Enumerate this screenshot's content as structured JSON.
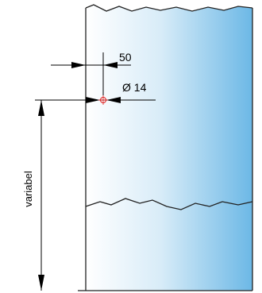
{
  "dimensions": {
    "offset_label": "50",
    "hole_diameter_label": "Ø 14",
    "height_label": "variabel"
  },
  "colors": {
    "panel_gradient_start": "#ffffff",
    "panel_gradient_end": "#6cb8e6",
    "outline": "#222222",
    "center_mark": "#e0201e",
    "dimension_line": "#000000"
  }
}
